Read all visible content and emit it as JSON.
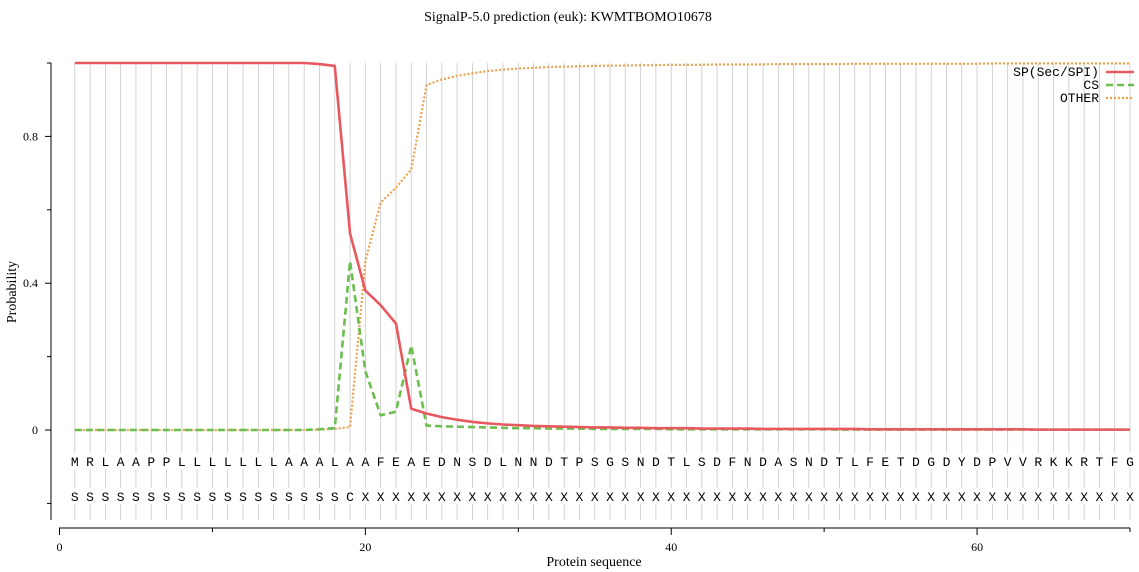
{
  "chart_data": {
    "type": "line",
    "title": "SignalP-5.0 prediction (euk):  KWMTBOMO10678",
    "xlabel": "Protein sequence",
    "ylabel": "Probability",
    "xlim": [
      0,
      70
    ],
    "ylim": [
      0,
      1
    ],
    "x_ticks": [
      0,
      20,
      40,
      60
    ],
    "x_tick_labels": [
      "0",
      "20",
      "40",
      "60"
    ],
    "y_ticks": [
      0,
      0.4,
      0.8
    ],
    "y_tick_labels": [
      "0",
      "0.4",
      "0.8"
    ],
    "grid": "vertical lines at each residue position",
    "legend_position": "top-right",
    "sequence": "MRLAAPPLLLLLLLAAALAAFEAEDNSDLNNDTPSGSNDTLSDFNDASNDTLFETDGDYDPVVRKKRTFG",
    "labels": "SSSSSSSSSSSSSSSSSSCXXXXXXXXXXXXXXXXXXXXXXXXXXXXXXXXXXXXXXXXXXXXXXXXXXX",
    "x": [
      1,
      2,
      3,
      4,
      5,
      6,
      7,
      8,
      9,
      10,
      11,
      12,
      13,
      14,
      15,
      16,
      17,
      18,
      19,
      20,
      21,
      22,
      23,
      24,
      25,
      26,
      27,
      28,
      29,
      30,
      31,
      32,
      33,
      34,
      35,
      36,
      37,
      38,
      39,
      40,
      41,
      42,
      43,
      44,
      45,
      46,
      47,
      48,
      49,
      50,
      51,
      52,
      53,
      54,
      55,
      56,
      57,
      58,
      59,
      60,
      61,
      62,
      63,
      64,
      65,
      66,
      67,
      68,
      69,
      70
    ],
    "series": [
      {
        "name": "SP(Sec/SPI)",
        "color": "#e8585f",
        "style": "solid",
        "values": [
          1,
          1,
          1,
          1,
          1,
          1,
          1,
          1,
          1,
          1,
          1,
          1,
          1,
          1,
          1,
          1,
          0.997,
          0.992,
          0.535,
          0.38,
          0.34,
          0.29,
          0.058,
          0.045,
          0.035,
          0.028,
          0.022,
          0.018,
          0.015,
          0.013,
          0.011,
          0.01,
          0.009,
          0.008,
          0.007,
          0.007,
          0.006,
          0.006,
          0.005,
          0.005,
          0.005,
          0.004,
          0.004,
          0.004,
          0.004,
          0.003,
          0.003,
          0.003,
          0.003,
          0.003,
          0.003,
          0.003,
          0.002,
          0.002,
          0.002,
          0.002,
          0.002,
          0.002,
          0.002,
          0.002,
          0.002,
          0.002,
          0.002,
          0.001,
          0.001,
          0.001,
          0.001,
          0.001,
          0.001,
          0.001
        ]
      },
      {
        "name": "CS",
        "color": "#6abf4f",
        "style": "dashed",
        "values": [
          0,
          0,
          0,
          0,
          0,
          0,
          0,
          0,
          0,
          0,
          0,
          0,
          0,
          0,
          0,
          0,
          0.002,
          0.005,
          0.46,
          0.16,
          0.04,
          0.05,
          0.23,
          0.012,
          0.01,
          0.009,
          0.008,
          0.007,
          0.006,
          0.005,
          0.005,
          0.004,
          0.004,
          0.004,
          0.003,
          0.003,
          0.003,
          0.003,
          0.003,
          0.002,
          0.002,
          0.002,
          0.002,
          0.002,
          0.002,
          0.002,
          0.002,
          0.002,
          0.002,
          0.002,
          0.001,
          0.001,
          0.001,
          0.001,
          0.001,
          0.001,
          0.001,
          0.001,
          0.001,
          0.001,
          0.001,
          0.001,
          0.001,
          0.001,
          0.001,
          0.001,
          0.001,
          0.001,
          0.001,
          0.001
        ]
      },
      {
        "name": "OTHER",
        "color": "#f0a04b",
        "style": "dotted",
        "values": [
          0,
          0,
          0,
          0,
          0,
          0,
          0,
          0,
          0,
          0,
          0,
          0,
          0,
          0,
          0,
          0,
          0.001,
          0.003,
          0.008,
          0.46,
          0.62,
          0.66,
          0.71,
          0.94,
          0.955,
          0.965,
          0.972,
          0.978,
          0.982,
          0.985,
          0.987,
          0.989,
          0.99,
          0.991,
          0.992,
          0.993,
          0.993,
          0.994,
          0.994,
          0.995,
          0.995,
          0.995,
          0.996,
          0.996,
          0.996,
          0.996,
          0.997,
          0.997,
          0.997,
          0.997,
          0.997,
          0.998,
          0.998,
          0.998,
          0.998,
          0.998,
          0.998,
          0.998,
          0.998,
          0.998,
          0.999,
          0.999,
          0.999,
          0.999,
          0.999,
          0.999,
          0.999,
          0.999,
          0.999,
          0.999
        ]
      }
    ]
  }
}
